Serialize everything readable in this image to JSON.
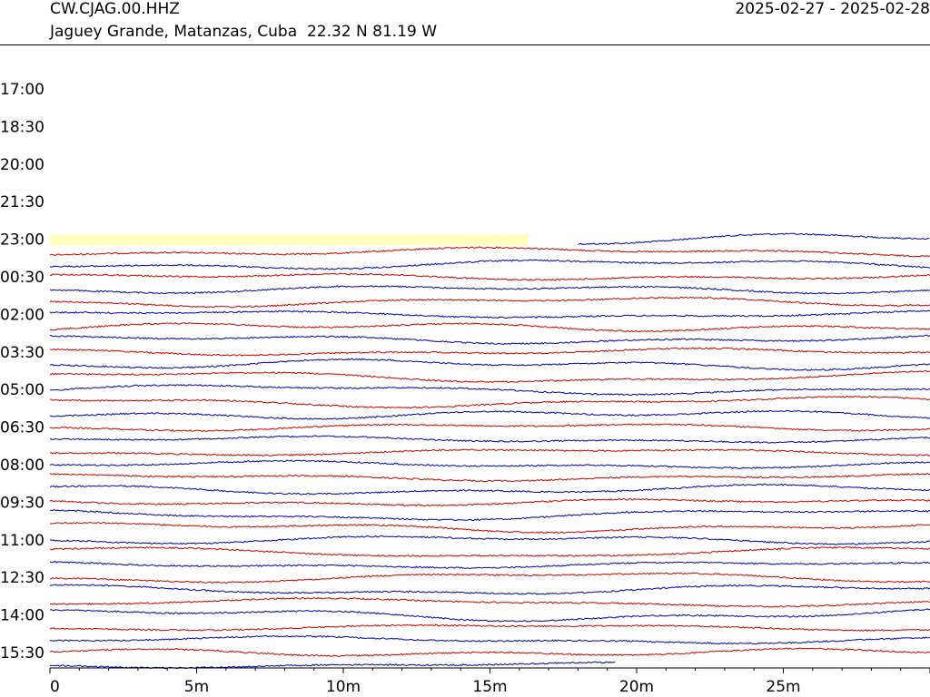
{
  "header": {
    "station": "CW.CJAG.00.HHZ",
    "location": "Jaguey Grande, Matanzas, Cuba  22.32 N 81.19 W",
    "date_range": "2025-02-27 - 2025-02-28"
  },
  "chart_data": {
    "type": "line",
    "title": "",
    "xlabel": "",
    "ylabel": "",
    "x_unit": "minutes",
    "xlim": [
      0,
      30
    ],
    "x_ticks": [
      "0",
      "5m",
      "10m",
      "15m",
      "20m",
      "25m"
    ],
    "y_ticks": [
      "17:00",
      "18:30",
      "20:00",
      "21:30",
      "23:00",
      "00:30",
      "02:00",
      "03:30",
      "05:00",
      "06:30",
      "08:00",
      "09:30",
      "11:00",
      "12:30",
      "14:00",
      "15:30"
    ],
    "trace_colors": [
      "#0000aa",
      "#cc0000"
    ],
    "gap_highlight_color": "#ffffc0",
    "series": [
      {
        "start_time": "23:00",
        "color": "blue",
        "x_start": 18.0,
        "x_end": 30.0
      },
      {
        "start_time": "23:30",
        "color": "red",
        "x_start": 0,
        "x_end": 30.0
      },
      {
        "start_time": "00:00",
        "color": "blue",
        "x_start": 0,
        "x_end": 30.0
      },
      {
        "start_time": "00:30",
        "color": "red",
        "x_start": 0,
        "x_end": 30.0
      },
      {
        "start_time": "01:00",
        "color": "blue",
        "x_start": 0,
        "x_end": 30.0
      },
      {
        "start_time": "01:30",
        "color": "red",
        "x_start": 0,
        "x_end": 30.0
      },
      {
        "start_time": "02:00",
        "color": "blue",
        "x_start": 0,
        "x_end": 30.0
      },
      {
        "start_time": "02:30",
        "color": "red",
        "x_start": 0,
        "x_end": 30.0
      },
      {
        "start_time": "03:00",
        "color": "blue",
        "x_start": 0,
        "x_end": 30.0
      },
      {
        "start_time": "03:30",
        "color": "red",
        "x_start": 0,
        "x_end": 30.0
      },
      {
        "start_time": "04:00",
        "color": "blue",
        "x_start": 0,
        "x_end": 30.0
      },
      {
        "start_time": "04:30",
        "color": "red",
        "x_start": 0,
        "x_end": 30.0
      },
      {
        "start_time": "05:00",
        "color": "blue",
        "x_start": 0,
        "x_end": 30.0
      },
      {
        "start_time": "05:30",
        "color": "red",
        "x_start": 0,
        "x_end": 30.0
      },
      {
        "start_time": "06:00",
        "color": "blue",
        "x_start": 0,
        "x_end": 30.0
      },
      {
        "start_time": "06:30",
        "color": "red",
        "x_start": 0,
        "x_end": 30.0
      },
      {
        "start_time": "07:00",
        "color": "blue",
        "x_start": 0,
        "x_end": 30.0
      },
      {
        "start_time": "07:30",
        "color": "red",
        "x_start": 0,
        "x_end": 30.0
      },
      {
        "start_time": "08:00",
        "color": "blue",
        "x_start": 0,
        "x_end": 30.0
      },
      {
        "start_time": "08:30",
        "color": "red",
        "x_start": 0,
        "x_end": 30.0
      },
      {
        "start_time": "09:00",
        "color": "blue",
        "x_start": 0,
        "x_end": 30.0
      },
      {
        "start_time": "09:30",
        "color": "red",
        "x_start": 0,
        "x_end": 30.0
      },
      {
        "start_time": "10:00",
        "color": "blue",
        "x_start": 0,
        "x_end": 30.0
      },
      {
        "start_time": "10:30",
        "color": "red",
        "x_start": 0,
        "x_end": 30.0
      },
      {
        "start_time": "11:00",
        "color": "blue",
        "x_start": 0,
        "x_end": 30.0
      },
      {
        "start_time": "11:30",
        "color": "red",
        "x_start": 0,
        "x_end": 30.0
      },
      {
        "start_time": "12:00",
        "color": "blue",
        "x_start": 0,
        "x_end": 30.0
      },
      {
        "start_time": "12:30",
        "color": "red",
        "x_start": 0,
        "x_end": 30.0
      },
      {
        "start_time": "13:00",
        "color": "blue",
        "x_start": 0,
        "x_end": 30.0
      },
      {
        "start_time": "13:30",
        "color": "red",
        "x_start": 0,
        "x_end": 30.0
      },
      {
        "start_time": "14:00",
        "color": "blue",
        "x_start": 0,
        "x_end": 30.0
      },
      {
        "start_time": "14:30",
        "color": "red",
        "x_start": 0,
        "x_end": 30.0
      },
      {
        "start_time": "15:00",
        "color": "blue",
        "x_start": 0,
        "x_end": 30.0
      },
      {
        "start_time": "15:30",
        "color": "red",
        "x_start": 0,
        "x_end": 30.0
      },
      {
        "start_time": "16:00",
        "color": "blue",
        "x_start": 0,
        "x_end": 19.3
      }
    ],
    "data_gap": {
      "start_time": "23:00",
      "x_start": 0,
      "x_end": 16.3
    }
  }
}
